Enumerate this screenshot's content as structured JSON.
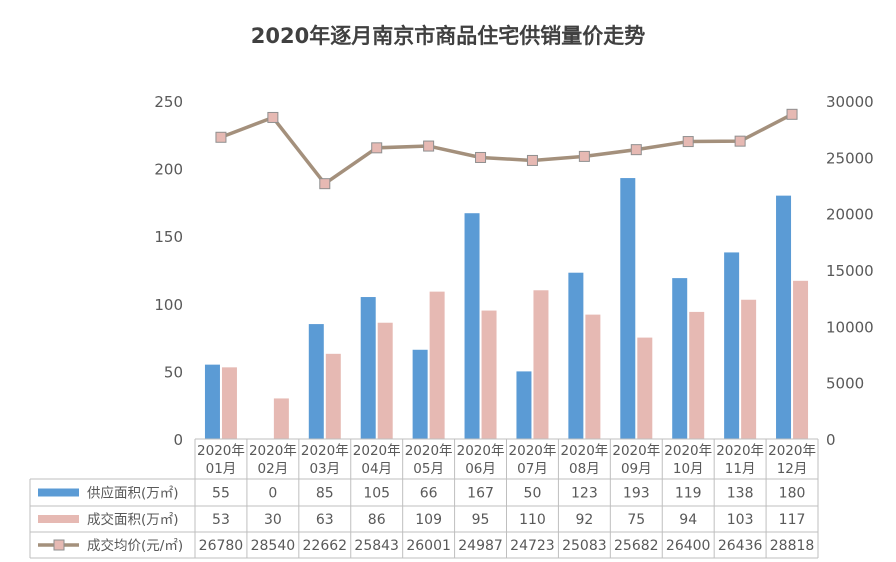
{
  "chart_data": {
    "type": "bar",
    "title": "2020年逐月南京市商品住宅供销量价走势",
    "categories": [
      [
        "2020年",
        "01月"
      ],
      [
        "2020年",
        "02月"
      ],
      [
        "2020年",
        "03月"
      ],
      [
        "2020年",
        "04月"
      ],
      [
        "2020年",
        "05月"
      ],
      [
        "2020年",
        "06月"
      ],
      [
        "2020年",
        "07月"
      ],
      [
        "2020年",
        "08月"
      ],
      [
        "2020年",
        "09月"
      ],
      [
        "2020年",
        "10月"
      ],
      [
        "2020年",
        "11月"
      ],
      [
        "2020年",
        "12月"
      ]
    ],
    "y_left": {
      "min": 0,
      "max": 250,
      "ticks": [
        "0",
        "50",
        "100",
        "150",
        "200",
        "250"
      ]
    },
    "y_right": {
      "min": 0,
      "max": 30000,
      "ticks": [
        "0",
        "5000",
        "10000",
        "15000",
        "20000",
        "25000",
        "30000"
      ]
    },
    "series": [
      {
        "name": "供应面积(万㎡)",
        "type": "bar",
        "axis": "left",
        "color": "#5b9bd5",
        "values": [
          55,
          0,
          85,
          105,
          66,
          167,
          50,
          123,
          193,
          119,
          138,
          180
        ]
      },
      {
        "name": "成交面积(万㎡)",
        "type": "bar",
        "axis": "left",
        "color": "#e6b9b3",
        "values": [
          53,
          30,
          63,
          86,
          109,
          95,
          110,
          92,
          75,
          94,
          103,
          117
        ]
      },
      {
        "name": "成交均价(元/㎡)",
        "type": "line",
        "axis": "right",
        "color": "#a4907c",
        "marker_color": "#e6b9b3",
        "values": [
          26780,
          28540,
          22662,
          25843,
          26001,
          24987,
          24723,
          25083,
          25682,
          26400,
          26436,
          28818
        ]
      }
    ],
    "legend": "data-table"
  }
}
